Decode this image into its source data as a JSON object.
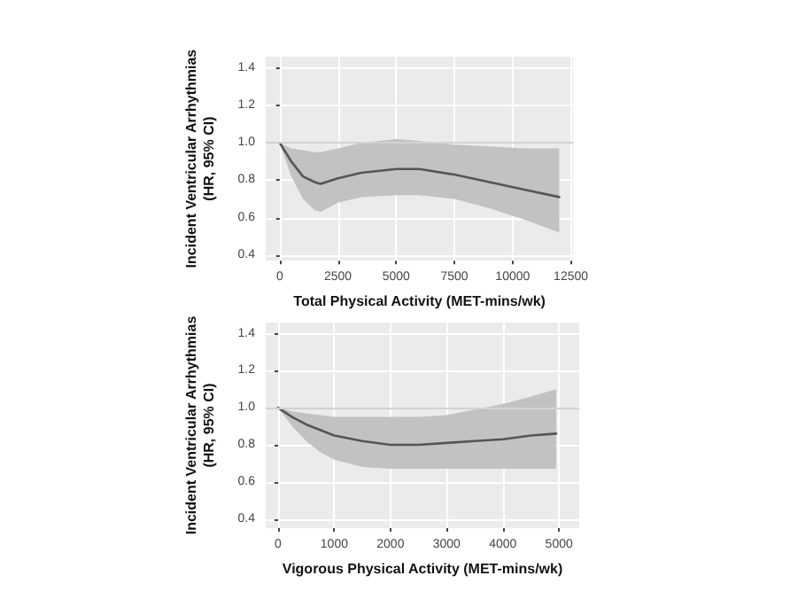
{
  "chart_data": [
    {
      "type": "line",
      "xlabel": "Total Physical Activity (MET-mins/wk)",
      "ylabel": "Incident Ventricular Arrhythmias\n(HR, 95% CI)",
      "x": [
        0,
        500,
        1000,
        1500,
        1750,
        2500,
        3500,
        5000,
        6000,
        7500,
        9000,
        10500,
        12000
      ],
      "series": [
        {
          "color": "#555555",
          "values": [
            1.0,
            0.9,
            0.82,
            0.79,
            0.78,
            0.81,
            0.84,
            0.86,
            0.86,
            0.83,
            0.79,
            0.75,
            0.71
          ],
          "lower": [
            1.0,
            0.82,
            0.7,
            0.64,
            0.63,
            0.68,
            0.71,
            0.72,
            0.72,
            0.7,
            0.65,
            0.59,
            0.52
          ],
          "upper": [
            1.0,
            0.97,
            0.96,
            0.95,
            0.95,
            0.97,
            1.0,
            1.02,
            1.01,
            0.99,
            0.98,
            0.97,
            0.97
          ]
        }
      ],
      "xlim": [
        -600,
        12600
      ],
      "xticks": [
        {
          "value": 0,
          "label": "0"
        },
        {
          "value": 2500,
          "label": "2500"
        },
        {
          "value": 5000,
          "label": "5000"
        },
        {
          "value": 7500,
          "label": "7500"
        },
        {
          "value": 10000,
          "label": "10000"
        },
        {
          "value": 12500,
          "label": "12500"
        }
      ],
      "ylim": [
        0.37,
        1.46
      ],
      "yticks": [
        {
          "value": 0.4,
          "label": "0.4"
        },
        {
          "value": 0.6,
          "label": "0.6"
        },
        {
          "value": 0.8,
          "label": "0.8"
        },
        {
          "value": 1.0,
          "label": "1.0"
        },
        {
          "value": 1.2,
          "label": "1.2"
        },
        {
          "value": 1.4,
          "label": "1.4"
        }
      ],
      "ref_lines": [
        {
          "axis": "y",
          "value": 1.0,
          "color": "#d2d2d2"
        }
      ],
      "grid": true,
      "marker": "none",
      "line_style": "solid"
    },
    {
      "type": "line",
      "xlabel": "Vigorous Physical Activity (MET-mins/wk)",
      "ylabel": "Incident Ventricular Arrhythmias\n(HR, 95% CI)",
      "x": [
        0,
        250,
        500,
        750,
        1000,
        1500,
        2000,
        2500,
        3000,
        3500,
        4000,
        4500,
        4950
      ],
      "series": [
        {
          "color": "#555555",
          "values": [
            1.0,
            0.95,
            0.91,
            0.88,
            0.85,
            0.82,
            0.8,
            0.8,
            0.81,
            0.82,
            0.83,
            0.85,
            0.86
          ],
          "lower": [
            1.0,
            0.9,
            0.82,
            0.76,
            0.72,
            0.68,
            0.67,
            0.67,
            0.67,
            0.67,
            0.67,
            0.67,
            0.67
          ],
          "upper": [
            1.0,
            0.98,
            0.97,
            0.96,
            0.95,
            0.95,
            0.95,
            0.95,
            0.96,
            0.99,
            1.02,
            1.06,
            1.1
          ]
        }
      ],
      "xlim": [
        -220,
        5360
      ],
      "xticks": [
        {
          "value": 0,
          "label": "0"
        },
        {
          "value": 1000,
          "label": "1000"
        },
        {
          "value": 2000,
          "label": "2000"
        },
        {
          "value": 3000,
          "label": "3000"
        },
        {
          "value": 4000,
          "label": "4000"
        },
        {
          "value": 5000,
          "label": "5000"
        }
      ],
      "ylim": [
        0.35,
        1.46
      ],
      "yticks": [
        {
          "value": 0.4,
          "label": "0.4"
        },
        {
          "value": 0.6,
          "label": "0.6"
        },
        {
          "value": 0.8,
          "label": "0.8"
        },
        {
          "value": 1.0,
          "label": "1.0"
        },
        {
          "value": 1.2,
          "label": "1.2"
        },
        {
          "value": 1.4,
          "label": "1.4"
        }
      ],
      "ref_lines": [
        {
          "axis": "y",
          "value": 1.0,
          "color": "#d2d2d2"
        }
      ],
      "grid": true,
      "marker": "none",
      "line_style": "solid"
    }
  ]
}
